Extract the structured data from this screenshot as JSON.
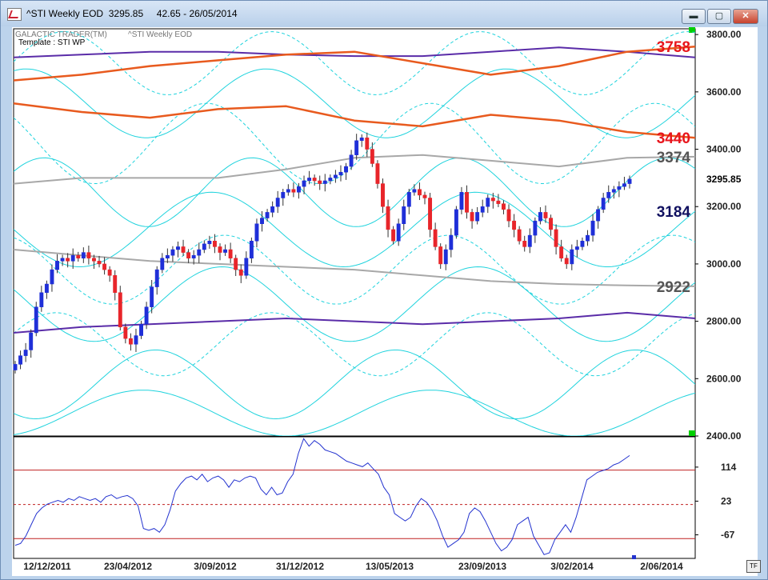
{
  "window": {
    "title": "^STI Weekly EOD  3295.85     42.65 - 26/05/2014",
    "buttons": {
      "minimize": "▬",
      "maximize": "▢",
      "close": "✕"
    }
  },
  "header": {
    "product": "GALACTIC TRADER(TM)",
    "symbol_label": "^STI Weekly EOD",
    "template": "Template : STI WP"
  },
  "badge": "TF",
  "colors": {
    "up_candle": "#1f2fd8",
    "down_candle": "#e8252a",
    "cyan": "#1fd3dd",
    "purple": "#5a2ca8",
    "orange": "#e85a1e",
    "gray": "#a8a8a8",
    "oscillator": "#2433cf",
    "osc_level": "#c02020",
    "grid_marker": "#00d000"
  },
  "chart_data": [
    {
      "type": "candlestick",
      "title": "",
      "ylim": [
        2400,
        3820
      ],
      "y_ticks": [
        "3800.00",
        "3600.00",
        "3400.00",
        "3200.00",
        "3000.00",
        "2800.00",
        "2600.00",
        "2400.00"
      ],
      "x_ticks": [
        "12/12/2011",
        "23/04/2012",
        "3/09/2012",
        "31/12/2012",
        "13/05/2013",
        "23/09/2013",
        "3/02/2014",
        "2/06/2014"
      ],
      "last_price_label": "3295.85",
      "level_labels": [
        {
          "text": "3758",
          "value": 3758,
          "color": "#e8151c"
        },
        {
          "text": "3440",
          "value": 3440,
          "color": "#e8151c"
        },
        {
          "text": "3374",
          "value": 3374,
          "color": "#555555"
        },
        {
          "text": "3184",
          "value": 3184,
          "color": "#101060"
        },
        {
          "text": "2922",
          "value": 2922,
          "color": "#555555"
        }
      ],
      "closes": [
        2650,
        2680,
        2700,
        2760,
        2850,
        2900,
        2930,
        2980,
        3010,
        3020,
        3010,
        3030,
        3020,
        3040,
        3020,
        3010,
        3000,
        2980,
        2960,
        2900,
        2780,
        2740,
        2720,
        2750,
        2790,
        2850,
        2920,
        2980,
        3020,
        3030,
        3050,
        3060,
        3040,
        3020,
        3030,
        3050,
        3070,
        3080,
        3060,
        3040,
        3050,
        3020,
        2980,
        2960,
        3020,
        3080,
        3140,
        3160,
        3180,
        3200,
        3230,
        3250,
        3260,
        3250,
        3270,
        3290,
        3300,
        3290,
        3280,
        3290,
        3300,
        3310,
        3320,
        3340,
        3380,
        3430,
        3440,
        3400,
        3350,
        3280,
        3200,
        3120,
        3080,
        3140,
        3200,
        3250,
        3260,
        3240,
        3230,
        3120,
        3060,
        3000,
        3050,
        3100,
        3190,
        3250,
        3180,
        3150,
        3180,
        3200,
        3230,
        3220,
        3210,
        3190,
        3150,
        3120,
        3080,
        3060,
        3100,
        3150,
        3180,
        3160,
        3120,
        3060,
        3020,
        3000,
        3050,
        3060,
        3080,
        3100,
        3150,
        3190,
        3230,
        3250,
        3260,
        3270,
        3280,
        3296
      ],
      "overlays": [
        {
          "name": "",
          "color": "purple",
          "values": [
            3720,
            3730,
            3740,
            3740,
            3730,
            3725,
            3725,
            3740,
            3755,
            3740,
            3720
          ]
        },
        {
          "name": "",
          "color": "orange",
          "values": [
            3640,
            3660,
            3690,
            3710,
            3730,
            3740,
            3700,
            3660,
            3690,
            3740,
            3758
          ]
        },
        {
          "name": "",
          "color": "orange",
          "values": [
            3560,
            3530,
            3510,
            3540,
            3550,
            3500,
            3480,
            3520,
            3500,
            3460,
            3440
          ]
        },
        {
          "name": "",
          "color": "gray",
          "values": [
            3280,
            3300,
            3300,
            3300,
            3330,
            3370,
            3380,
            3360,
            3340,
            3370,
            3374
          ]
        },
        {
          "name": "",
          "color": "purple",
          "values": [
            2760,
            2780,
            2790,
            2800,
            2810,
            2800,
            2790,
            2800,
            2810,
            2830,
            2810
          ]
        },
        {
          "name": "",
          "color": "gray",
          "values": [
            3050,
            3030,
            3010,
            3000,
            2990,
            2980,
            2960,
            2940,
            2930,
            2925,
            2922
          ]
        }
      ]
    },
    {
      "type": "line",
      "title": "",
      "ylim": [
        -130,
        195
      ],
      "y_ticks": [
        "114",
        "23",
        "-67"
      ],
      "levels": [
        106,
        14,
        -77
      ],
      "values": [
        -95,
        -90,
        -70,
        -40,
        -10,
        5,
        15,
        20,
        25,
        20,
        30,
        25,
        35,
        30,
        25,
        30,
        20,
        35,
        40,
        30,
        35,
        38,
        30,
        10,
        -50,
        -55,
        -50,
        -60,
        -40,
        0,
        50,
        70,
        85,
        90,
        80,
        95,
        75,
        85,
        90,
        80,
        60,
        80,
        75,
        85,
        90,
        85,
        55,
        40,
        60,
        40,
        45,
        75,
        95,
        150,
        190,
        170,
        185,
        175,
        160,
        155,
        150,
        140,
        130,
        125,
        120,
        115,
        125,
        110,
        95,
        60,
        40,
        -10,
        -20,
        -30,
        -20,
        10,
        30,
        20,
        0,
        -30,
        -70,
        -100,
        -90,
        -80,
        -60,
        -10,
        5,
        -5,
        -30,
        -60,
        -90,
        -110,
        -100,
        -80,
        -40,
        -30,
        -20,
        -70,
        -95,
        -120,
        -115,
        -80,
        -60,
        -40,
        -60,
        -20,
        30,
        80,
        90,
        100,
        105,
        110,
        120,
        125,
        135,
        145
      ],
      "xlabel": "",
      "ylabel": ""
    }
  ]
}
